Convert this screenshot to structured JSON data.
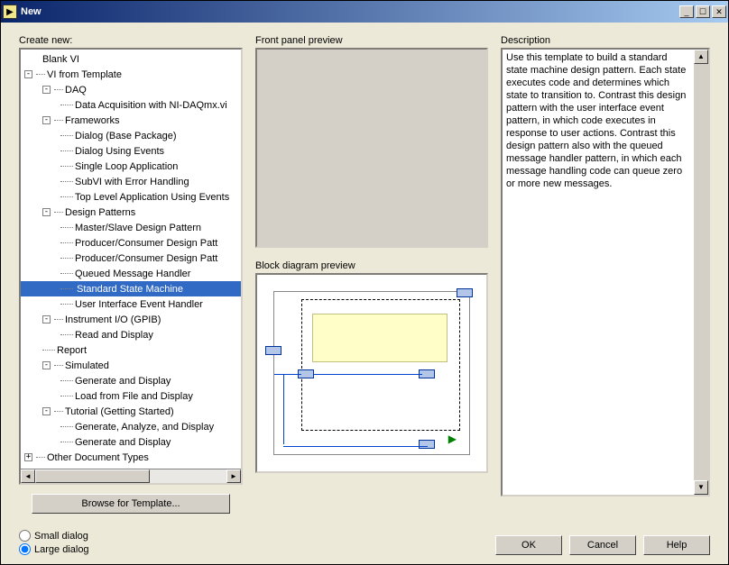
{
  "window": {
    "title": "New"
  },
  "labels": {
    "create_new": "Create new:",
    "front_panel": "Front panel preview",
    "block_diagram": "Block diagram preview",
    "description": "Description"
  },
  "tree": {
    "items": [
      {
        "indent": 24,
        "exp": "",
        "dot": 0,
        "label": "Blank VI"
      },
      {
        "indent": 4,
        "exp": "-",
        "dot": 10,
        "label": "VI from Template"
      },
      {
        "indent": 24,
        "exp": "-",
        "dot": 10,
        "label": "DAQ"
      },
      {
        "indent": 44,
        "exp": "",
        "dot": 14,
        "label": "Data Acquisition with NI-DAQmx.vi"
      },
      {
        "indent": 24,
        "exp": "-",
        "dot": 10,
        "label": "Frameworks"
      },
      {
        "indent": 44,
        "exp": "",
        "dot": 14,
        "label": "Dialog (Base Package)"
      },
      {
        "indent": 44,
        "exp": "",
        "dot": 14,
        "label": "Dialog Using Events"
      },
      {
        "indent": 44,
        "exp": "",
        "dot": 14,
        "label": "Single Loop Application"
      },
      {
        "indent": 44,
        "exp": "",
        "dot": 14,
        "label": "SubVI with Error Handling"
      },
      {
        "indent": 44,
        "exp": "",
        "dot": 14,
        "label": "Top Level Application Using Events"
      },
      {
        "indent": 24,
        "exp": "-",
        "dot": 10,
        "label": "Design Patterns"
      },
      {
        "indent": 44,
        "exp": "",
        "dot": 14,
        "label": "Master/Slave Design Pattern"
      },
      {
        "indent": 44,
        "exp": "",
        "dot": 14,
        "label": "Producer/Consumer Design Patt"
      },
      {
        "indent": 44,
        "exp": "",
        "dot": 14,
        "label": "Producer/Consumer Design Patt"
      },
      {
        "indent": 44,
        "exp": "",
        "dot": 14,
        "label": "Queued Message Handler"
      },
      {
        "indent": 44,
        "exp": "",
        "dot": 14,
        "label": "Standard State Machine",
        "selected": true
      },
      {
        "indent": 44,
        "exp": "",
        "dot": 14,
        "label": "User Interface Event Handler"
      },
      {
        "indent": 24,
        "exp": "-",
        "dot": 10,
        "label": "Instrument I/O (GPIB)"
      },
      {
        "indent": 44,
        "exp": "",
        "dot": 14,
        "label": "Read and Display"
      },
      {
        "indent": 24,
        "exp": "",
        "dot": 14,
        "label": "Report"
      },
      {
        "indent": 24,
        "exp": "-",
        "dot": 10,
        "label": "Simulated"
      },
      {
        "indent": 44,
        "exp": "",
        "dot": 14,
        "label": "Generate and Display"
      },
      {
        "indent": 44,
        "exp": "",
        "dot": 14,
        "label": "Load from File and Display"
      },
      {
        "indent": 24,
        "exp": "-",
        "dot": 10,
        "label": "Tutorial (Getting Started)"
      },
      {
        "indent": 44,
        "exp": "",
        "dot": 14,
        "label": "Generate, Analyze, and Display"
      },
      {
        "indent": 44,
        "exp": "",
        "dot": 14,
        "label": "Generate and Display"
      },
      {
        "indent": 4,
        "exp": "+",
        "dot": 10,
        "label": "Other Document Types"
      }
    ]
  },
  "browse_btn": "Browse for Template...",
  "description_text": "Use this template to build a standard state machine design pattern. Each state executes code and determines which state to transition to. Contrast this design pattern with the user interface event pattern, in which code executes in response to user actions. Contrast this design pattern also with the queued message handler pattern, in which each message handling code can queue zero or more new messages.",
  "radios": {
    "small": "Small dialog",
    "large": "Large dialog",
    "selected": "large"
  },
  "buttons": {
    "ok": "OK",
    "cancel": "Cancel",
    "help": "Help"
  },
  "colors": {
    "titlebar_start": "#0a246a",
    "titlebar_end": "#a6caf0",
    "face": "#ece9d8",
    "btn_face": "#d4d0c8",
    "selection": "#316ac5"
  }
}
